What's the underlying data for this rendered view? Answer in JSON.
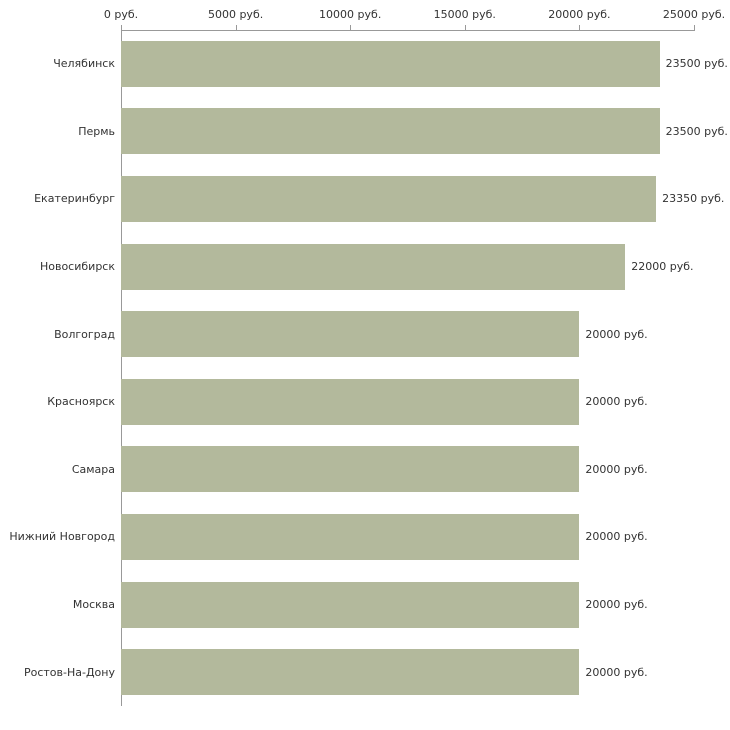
{
  "chart_data": {
    "type": "bar",
    "orientation": "horizontal",
    "title": "",
    "xlabel": "",
    "ylabel": "",
    "xlim": [
      0,
      25000
    ],
    "grid": false,
    "legend": false,
    "bar_color": "#b3b99c",
    "axis_color": "#999999",
    "text_color": "#333333",
    "tick_values": [
      0,
      5000,
      10000,
      15000,
      20000,
      25000
    ],
    "tick_labels": [
      "0 руб.",
      "5000 руб.",
      "10000 руб.",
      "15000 руб.",
      "20000 руб.",
      "25000 руб."
    ],
    "categories": [
      "Челябинск",
      "Пермь",
      "Екатеринбург",
      "Новосибирск",
      "Волгоград",
      "Красноярск",
      "Самара",
      "Нижний Новгород",
      "Москва",
      "Ростов-На-Дону"
    ],
    "values": [
      23500,
      23500,
      23350,
      22000,
      20000,
      20000,
      20000,
      20000,
      20000,
      20000
    ],
    "value_labels": [
      "23500 руб.",
      "23500 руб.",
      "23350 руб.",
      "22000 руб.",
      "20000 руб.",
      "20000 руб.",
      "20000 руб.",
      "20000 руб.",
      "20000 руб.",
      "20000 руб."
    ]
  }
}
